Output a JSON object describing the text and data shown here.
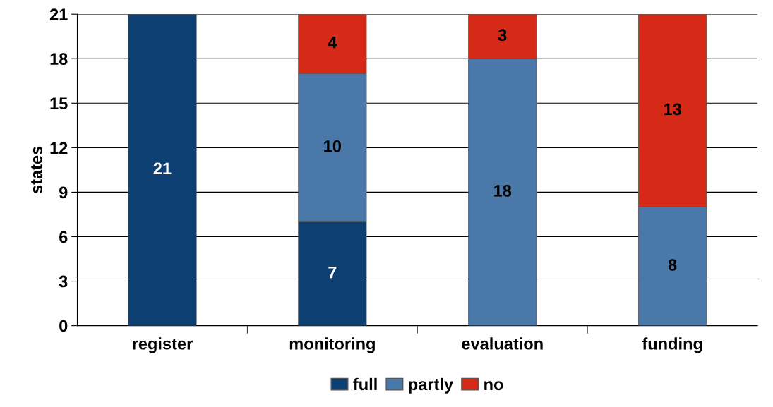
{
  "chart_data": {
    "type": "bar",
    "stacked": true,
    "ylabel": "states",
    "categories": [
      "register",
      "monitoring",
      "evaluation",
      "funding"
    ],
    "series": [
      {
        "name": "full",
        "color": "#0e3f72",
        "values": [
          21,
          7,
          null,
          null
        ]
      },
      {
        "name": "partly",
        "color": "#4a78a8",
        "values": [
          null,
          10,
          18,
          8
        ]
      },
      {
        "name": "no",
        "color": "#d42a17",
        "values": [
          null,
          4,
          3,
          13
        ]
      }
    ],
    "ylim": [
      0,
      21
    ],
    "yticks": [
      0,
      3,
      6,
      9,
      12,
      15,
      18,
      21
    ],
    "grid": "y",
    "legend": "bottom",
    "data_labels": true
  }
}
